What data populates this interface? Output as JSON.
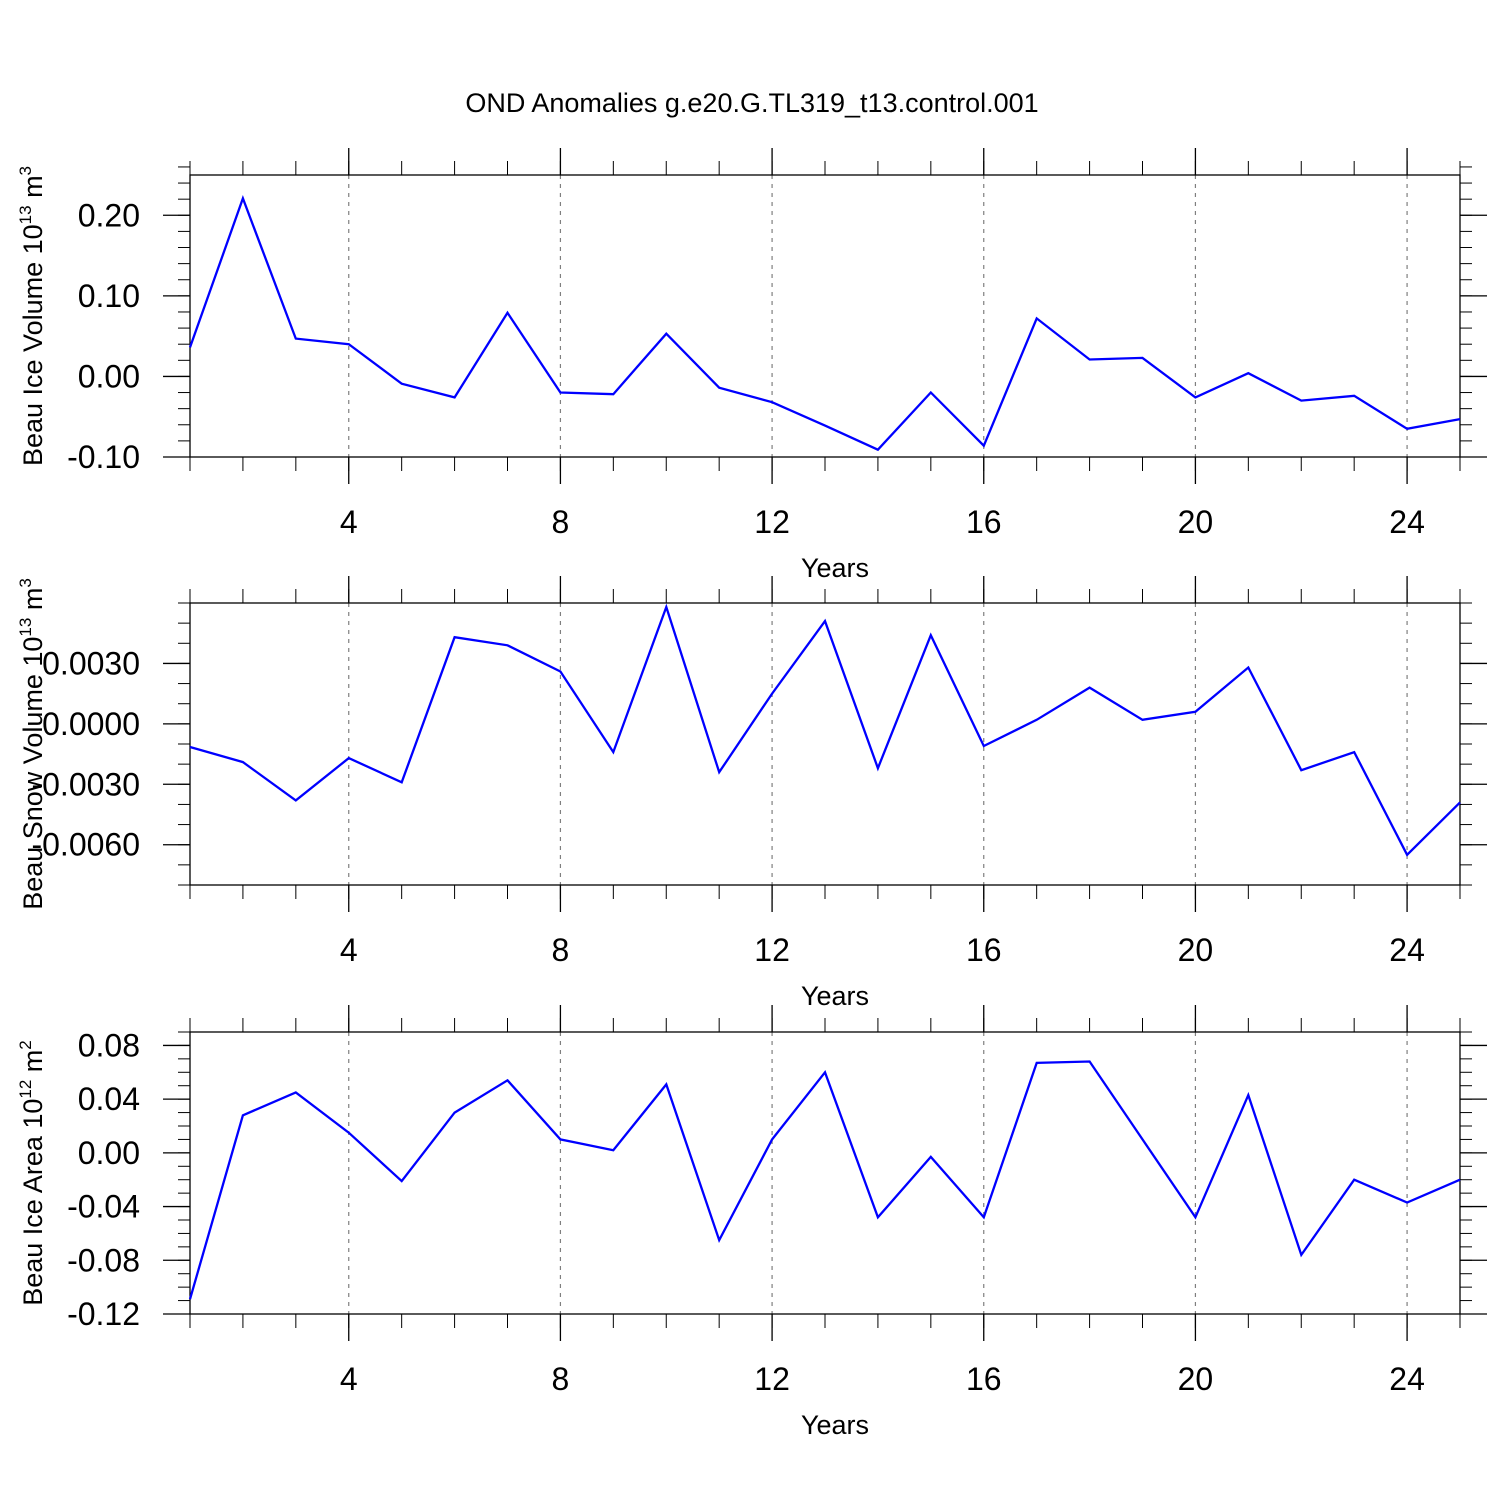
{
  "title": "OND Anomalies g.e20.G.TL319_t13.control.001",
  "colors": {
    "series": "#0000ff",
    "axis": "#000000",
    "grid": "#7f7f7f",
    "background": "#ffffff"
  },
  "chart_data": [
    {
      "type": "line",
      "title": "",
      "xlabel": "Years",
      "ylabel": {
        "text": "Beau Ice Volume 10",
        "exponent": "13",
        "unit": " m",
        "unit_exponent": "3"
      },
      "xlim": [
        1,
        25
      ],
      "ylim": [
        -0.1,
        0.25
      ],
      "x_ticks": [
        4,
        8,
        12,
        16,
        20,
        24
      ],
      "x_tick_labels": [
        "4",
        "8",
        "12",
        "16",
        "20",
        "24"
      ],
      "y_ticks": [
        -0.1,
        0.0,
        0.1,
        0.2
      ],
      "y_tick_labels": [
        "-0.10",
        "0.00",
        "0.10",
        "0.20"
      ],
      "x_minor_step": 1,
      "y_minor_step": 0.02,
      "grid": "vertical-dashed-at-major-x-ticks",
      "x": [
        1,
        2,
        3,
        4,
        5,
        6,
        7,
        8,
        9,
        10,
        11,
        12,
        13,
        14,
        15,
        16,
        17,
        18,
        19,
        20,
        21,
        22,
        23,
        24,
        25
      ],
      "series": [
        {
          "values": [
            0.036,
            0.221,
            0.047,
            0.04,
            -0.009,
            -0.026,
            0.079,
            -0.02,
            -0.022,
            0.053,
            -0.014,
            -0.032,
            -0.061,
            -0.091,
            -0.02,
            -0.086,
            0.072,
            0.021,
            0.023,
            -0.026,
            0.004,
            -0.03,
            -0.024,
            -0.065,
            -0.053
          ]
        }
      ]
    },
    {
      "type": "line",
      "title": "",
      "xlabel": "Years",
      "ylabel": {
        "text": "Beau Snow Volume 10",
        "exponent": "13",
        "unit": " m",
        "unit_exponent": "3"
      },
      "xlim": [
        1,
        25
      ],
      "ylim": [
        -0.008,
        0.006
      ],
      "x_ticks": [
        4,
        8,
        12,
        16,
        20,
        24
      ],
      "x_tick_labels": [
        "4",
        "8",
        "12",
        "16",
        "20",
        "24"
      ],
      "y_ticks": [
        -0.006,
        -0.003,
        0.0,
        0.003
      ],
      "y_tick_labels": [
        "-0.0060",
        "-0.0030",
        "0.0000",
        "0.0030"
      ],
      "x_minor_step": 1,
      "y_minor_step": 0.001,
      "grid": "vertical-dashed-at-major-x-ticks",
      "x": [
        1,
        2,
        3,
        4,
        5,
        6,
        7,
        8,
        9,
        10,
        11,
        12,
        13,
        14,
        15,
        16,
        17,
        18,
        19,
        20,
        21,
        22,
        23,
        24,
        25
      ],
      "series": [
        {
          "values": [
            -0.00115,
            -0.0019,
            -0.0038,
            -0.0017,
            -0.0029,
            0.0043,
            0.0039,
            0.0026,
            -0.0014,
            0.0058,
            -0.0024,
            0.0015,
            0.0051,
            -0.0022,
            0.0044,
            -0.0011,
            0.0002,
            0.0018,
            0.0002,
            0.0006,
            0.0028,
            -0.0023,
            -0.0014,
            -0.0065,
            -0.0039
          ]
        }
      ]
    },
    {
      "type": "line",
      "title": "",
      "xlabel": "Years",
      "ylabel": {
        "text": "Beau Ice Area 10",
        "exponent": "12",
        "unit": " m",
        "unit_exponent": "2"
      },
      "xlim": [
        1,
        25
      ],
      "ylim": [
        -0.12,
        0.09
      ],
      "x_ticks": [
        4,
        8,
        12,
        16,
        20,
        24
      ],
      "x_tick_labels": [
        "4",
        "8",
        "12",
        "16",
        "20",
        "24"
      ],
      "y_ticks": [
        -0.12,
        -0.08,
        -0.04,
        0.0,
        0.04,
        0.08
      ],
      "y_tick_labels": [
        "-0.12",
        "-0.08",
        "-0.04",
        "0.00",
        "0.04",
        "0.08"
      ],
      "x_minor_step": 1,
      "y_minor_step": 0.01,
      "grid": "vertical-dashed-at-major-x-ticks",
      "x": [
        1,
        2,
        3,
        4,
        5,
        6,
        7,
        8,
        9,
        10,
        11,
        12,
        13,
        14,
        15,
        16,
        17,
        18,
        19,
        20,
        21,
        22,
        23,
        24,
        25
      ],
      "series": [
        {
          "values": [
            -0.109,
            0.028,
            0.045,
            0.015,
            -0.021,
            0.03,
            0.054,
            0.01,
            0.002,
            0.051,
            -0.065,
            0.01,
            0.06,
            -0.048,
            -0.003,
            -0.048,
            0.067,
            0.068,
            0.01,
            -0.048,
            0.043,
            -0.076,
            -0.02,
            -0.037,
            -0.02
          ]
        }
      ]
    }
  ]
}
